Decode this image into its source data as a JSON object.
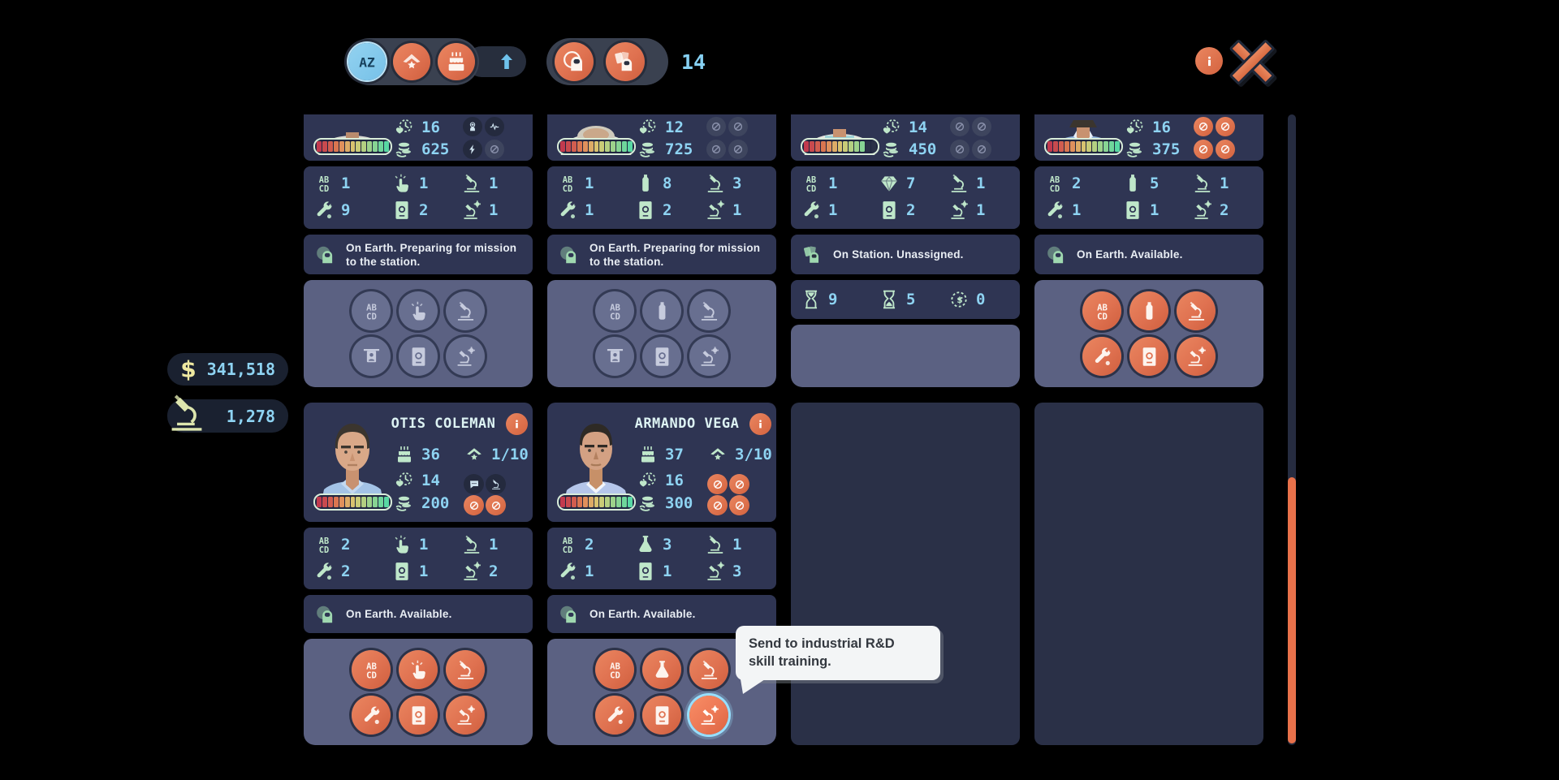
{
  "toolbar": {
    "sort_buttons": [
      {
        "name": "sort-alphabetical",
        "icon": "az",
        "style": "blue",
        "selected": true
      },
      {
        "name": "sort-rank",
        "icon": "medal",
        "style": "orange",
        "selected": false
      },
      {
        "name": "sort-age",
        "icon": "cake",
        "style": "orange",
        "selected": false
      }
    ],
    "sort_direction_icon": "arrow-up",
    "filter_buttons": [
      {
        "name": "filter-astronauts-on-earth",
        "icon": "astronaut-planet"
      },
      {
        "name": "filter-astronauts-on-station",
        "icon": "astronaut-cards"
      }
    ],
    "crew_count": "14",
    "info_icon": "info",
    "close_icon": "close"
  },
  "resources": {
    "money": {
      "icon": "dollar",
      "value": "341,518"
    },
    "science": {
      "icon": "microscope",
      "value": "1,278"
    }
  },
  "tooltip": {
    "line1": "Send to industrial R&D",
    "line2": "skill training."
  },
  "colors": {
    "accent_orange": "#df7150",
    "value_cyan": "#8ed3f2",
    "icon_mint": "#bfe7ca",
    "panel": "#2f3553",
    "panel_light": "#5b6182",
    "tooltip_bg": "#f3f5f6",
    "scrollbar_thumb": "#e8714a",
    "bar_gradient": [
      "#c23a4e",
      "#c94a4e",
      "#d25d4f",
      "#da7650",
      "#e0905c",
      "#ddab66",
      "#d8c26f",
      "#c9cb77",
      "#b3cf81",
      "#9dd28b",
      "#87d493",
      "#6fd69b",
      "#58d8a3"
    ]
  },
  "cards": [
    {
      "variant": "partial",
      "portrait": "crew1",
      "bar_filled": 13,
      "quick_stats": [
        {
          "icon": "heart-clock",
          "value": "16"
        },
        {
          "icon": "coins",
          "value": "625"
        }
      ],
      "flags": [
        {
          "icon": "astronaut",
          "style": "dark"
        },
        {
          "icon": "pulse",
          "style": "dark"
        },
        {
          "icon": "bolt",
          "style": "dark"
        },
        {
          "icon": "ban",
          "style": "gray"
        }
      ],
      "skills": [
        {
          "icon": "abcd",
          "value": "1"
        },
        {
          "icon": "tap",
          "value": "1"
        },
        {
          "icon": "microscope",
          "value": "1"
        },
        {
          "icon": "wrench",
          "value": "9"
        },
        {
          "icon": "passport",
          "value": "2"
        },
        {
          "icon": "microscope-gear",
          "value": "1"
        }
      ],
      "status": {
        "icon": "astronaut-earth",
        "text": "On Earth. Preparing for mission to the station."
      },
      "timers": null,
      "actions": {
        "state": "disabled",
        "buttons": [
          "abcd",
          "tap",
          "microscope",
          "sign",
          "passport",
          "microscope-gear"
        ],
        "hover_index": -1
      }
    },
    {
      "variant": "partial",
      "portrait": "crew2",
      "bar_filled": 13,
      "quick_stats": [
        {
          "icon": "heart-clock",
          "value": "12"
        },
        {
          "icon": "coins",
          "value": "725"
        }
      ],
      "flags": [
        {
          "icon": "ban",
          "style": "gray"
        },
        {
          "icon": "ban",
          "style": "gray"
        },
        {
          "icon": "ban",
          "style": "gray"
        },
        {
          "icon": "ban",
          "style": "gray"
        }
      ],
      "skills": [
        {
          "icon": "abcd",
          "value": "1"
        },
        {
          "icon": "bottle",
          "value": "8"
        },
        {
          "icon": "microscope",
          "value": "3"
        },
        {
          "icon": "wrench",
          "value": "1"
        },
        {
          "icon": "passport",
          "value": "2"
        },
        {
          "icon": "microscope-gear",
          "value": "1"
        }
      ],
      "status": {
        "icon": "astronaut-earth",
        "text": "On Earth. Preparing for mission to the station."
      },
      "timers": null,
      "actions": {
        "state": "disabled",
        "buttons": [
          "abcd",
          "bottle",
          "microscope",
          "sign",
          "passport",
          "microscope-gear"
        ],
        "hover_index": -1
      }
    },
    {
      "variant": "partial",
      "portrait": "crew3",
      "bar_filled": 11,
      "quick_stats": [
        {
          "icon": "heart-clock",
          "value": "14"
        },
        {
          "icon": "coins",
          "value": "450"
        }
      ],
      "flags": [
        {
          "icon": "ban",
          "style": "gray"
        },
        {
          "icon": "ban",
          "style": "gray"
        },
        {
          "icon": "ban",
          "style": "gray"
        },
        {
          "icon": "ban",
          "style": "gray"
        }
      ],
      "skills": [
        {
          "icon": "abcd",
          "value": "1"
        },
        {
          "icon": "diamond",
          "value": "7"
        },
        {
          "icon": "microscope",
          "value": "1"
        },
        {
          "icon": "wrench",
          "value": "1"
        },
        {
          "icon": "passport",
          "value": "2"
        },
        {
          "icon": "microscope-gear",
          "value": "1"
        }
      ],
      "status": {
        "icon": "astronaut-cards",
        "text": "On Station. Unassigned."
      },
      "timers": [
        {
          "icon": "hourglass-full",
          "value": "9"
        },
        {
          "icon": "hourglass-low",
          "value": "5"
        },
        {
          "icon": "money-clock",
          "value": "0"
        }
      ],
      "actions": null
    },
    {
      "variant": "partial",
      "portrait": "crew4",
      "bar_filled": 13,
      "quick_stats": [
        {
          "icon": "heart-clock",
          "value": "16"
        },
        {
          "icon": "coins",
          "value": "375"
        }
      ],
      "flags": [
        {
          "icon": "ban",
          "style": "orange"
        },
        {
          "icon": "ban",
          "style": "orange"
        },
        {
          "icon": "ban",
          "style": "orange"
        },
        {
          "icon": "ban",
          "style": "orange"
        }
      ],
      "skills": [
        {
          "icon": "abcd",
          "value": "2"
        },
        {
          "icon": "bottle",
          "value": "5"
        },
        {
          "icon": "microscope",
          "value": "1"
        },
        {
          "icon": "wrench",
          "value": "1"
        },
        {
          "icon": "passport",
          "value": "1"
        },
        {
          "icon": "microscope-gear",
          "value": "2"
        }
      ],
      "status": {
        "icon": "astronaut-earth",
        "text": "On Earth. Available."
      },
      "timers": null,
      "actions": {
        "state": "enabled",
        "buttons": [
          "abcd",
          "bottle",
          "microscope",
          "wrench",
          "passport",
          "microscope-gear"
        ],
        "hover_index": -1
      }
    },
    {
      "variant": "full",
      "portrait": "otis",
      "name": "OTIS COLEMAN",
      "info_icon": "info",
      "bar_filled": 13,
      "age": {
        "icon": "cake",
        "value": "36"
      },
      "rank": {
        "icon": "rank",
        "value": "1/10"
      },
      "quick_stats": [
        {
          "icon": "heart-clock",
          "value": "14"
        },
        {
          "icon": "coins",
          "value": "200"
        }
      ],
      "flags": [
        {
          "icon": "chat",
          "style": "dark"
        },
        {
          "icon": "microscope",
          "style": "dark"
        },
        {
          "icon": "ban",
          "style": "orange"
        },
        {
          "icon": "ban",
          "style": "orange"
        }
      ],
      "skills": [
        {
          "icon": "abcd",
          "value": "2"
        },
        {
          "icon": "tap",
          "value": "1"
        },
        {
          "icon": "microscope",
          "value": "1"
        },
        {
          "icon": "wrench",
          "value": "2"
        },
        {
          "icon": "passport",
          "value": "1"
        },
        {
          "icon": "microscope-gear",
          "value": "2"
        }
      ],
      "status": {
        "icon": "astronaut-earth",
        "text": "On Earth. Available."
      },
      "timers": null,
      "actions": {
        "state": "enabled",
        "buttons": [
          "abcd",
          "tap",
          "microscope",
          "wrench",
          "passport",
          "microscope-gear"
        ],
        "hover_index": -1
      }
    },
    {
      "variant": "full",
      "portrait": "armando",
      "name": "ARMANDO VEGA",
      "info_icon": "info",
      "bar_filled": 13,
      "age": {
        "icon": "cake",
        "value": "37"
      },
      "rank": {
        "icon": "rank",
        "value": "3/10"
      },
      "quick_stats": [
        {
          "icon": "heart-clock",
          "value": "16"
        },
        {
          "icon": "coins",
          "value": "300"
        }
      ],
      "flags": [
        {
          "icon": "ban",
          "style": "orange"
        },
        {
          "icon": "ban",
          "style": "orange"
        },
        {
          "icon": "ban",
          "style": "orange"
        },
        {
          "icon": "ban",
          "style": "orange"
        }
      ],
      "skills": [
        {
          "icon": "abcd",
          "value": "2"
        },
        {
          "icon": "flask",
          "value": "3"
        },
        {
          "icon": "microscope",
          "value": "1"
        },
        {
          "icon": "wrench",
          "value": "1"
        },
        {
          "icon": "passport",
          "value": "1"
        },
        {
          "icon": "microscope-gear",
          "value": "3"
        }
      ],
      "status": {
        "icon": "astronaut-earth",
        "text": "On Earth. Available."
      },
      "timers": null,
      "actions": {
        "state": "enabled",
        "buttons": [
          "abcd",
          "flask",
          "microscope",
          "wrench",
          "passport",
          "microscope-gear"
        ],
        "hover_index": 5
      }
    },
    {
      "variant": "empty"
    },
    {
      "variant": "empty"
    }
  ]
}
